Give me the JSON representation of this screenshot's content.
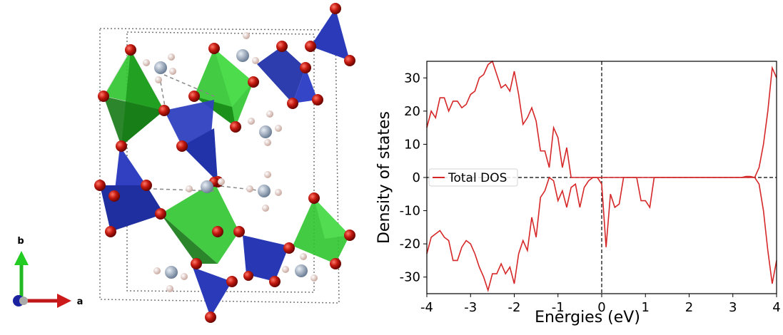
{
  "structure": {
    "axis_b": "b",
    "axis_a": "a"
  },
  "chart_data": {
    "type": "line",
    "xlabel": "Energies (eV)",
    "ylabel": "Density of states",
    "x": [
      -4,
      -3.9,
      -3.8,
      -3.7,
      -3.6,
      -3.5,
      -3.4,
      -3.3,
      -3.2,
      -3.1,
      -3,
      -2.9,
      -2.8,
      -2.7,
      -2.6,
      -2.5,
      -2.4,
      -2.3,
      -2.2,
      -2.1,
      -2,
      -1.9,
      -1.8,
      -1.7,
      -1.6,
      -1.5,
      -1.4,
      -1.3,
      -1.2,
      -1.1,
      -1,
      -0.9,
      -0.8,
      -0.7,
      -0.6,
      -0.5,
      -0.4,
      -0.3,
      -0.2,
      -0.1,
      0,
      0.1,
      0.2,
      0.3,
      0.4,
      0.5,
      0.6,
      0.7,
      0.8,
      0.9,
      1,
      1.1,
      1.2,
      1.3,
      1.4,
      1.5,
      1.6,
      1.7,
      1.8,
      1.9,
      2,
      2.1,
      2.2,
      2.3,
      2.4,
      2.5,
      2.6,
      2.7,
      2.8,
      2.9,
      3,
      3.1,
      3.2,
      3.3,
      3.4,
      3.5,
      3.6,
      3.7,
      3.8,
      3.9,
      4
    ],
    "series": [
      {
        "name": "Total DOS",
        "color": "#d62728",
        "values": [
          15,
          20,
          18,
          24,
          24,
          20,
          23,
          23,
          21,
          22,
          25,
          26,
          30,
          31,
          34,
          35,
          31,
          27,
          28,
          26,
          32,
          25,
          16,
          18,
          21,
          17,
          8,
          8,
          3,
          15,
          12,
          3,
          9,
          0,
          0,
          0,
          0,
          0,
          0,
          0,
          0,
          0,
          0,
          0,
          0,
          0,
          0,
          0,
          0,
          0,
          0,
          0,
          0,
          0,
          0,
          0,
          0,
          0,
          0,
          0,
          0,
          0,
          0,
          0,
          0,
          0,
          0,
          0,
          0,
          0,
          0,
          0,
          0,
          0.3,
          0.3,
          0,
          3,
          10,
          20,
          33,
          30
        ]
      },
      {
        "color": "#d62728",
        "values": [
          -23,
          -18,
          -17,
          -16,
          -18,
          -19,
          -25,
          -25,
          -21,
          -19,
          -20,
          -23,
          -27,
          -30,
          -34,
          -29,
          -29,
          -26,
          -29,
          -27,
          -32,
          -23,
          -19,
          -22,
          -12,
          -18,
          -6,
          -4,
          0,
          -1,
          -7,
          -4,
          -9,
          -3,
          -2,
          -9,
          -3,
          -1,
          0,
          0,
          -2,
          -21,
          -5,
          -9,
          -8,
          0,
          0,
          0,
          0,
          -7,
          -7,
          -9,
          0,
          0,
          0,
          0,
          0,
          0,
          0,
          0,
          0,
          0,
          0,
          0,
          0,
          0,
          0,
          0,
          0,
          0,
          0,
          0,
          0,
          0,
          0,
          0,
          -2,
          -10,
          -22,
          -32,
          -25
        ]
      }
    ],
    "xlim": [
      -4,
      4
    ],
    "ylim": [
      -35,
      35
    ],
    "xticks": [
      -4,
      -3,
      -2,
      -1,
      0,
      1,
      2,
      3,
      4
    ],
    "yticks": [
      -30,
      -20,
      -10,
      0,
      10,
      20,
      30
    ],
    "hline": 0,
    "vline": 0,
    "legend": "center left",
    "grid": false
  }
}
